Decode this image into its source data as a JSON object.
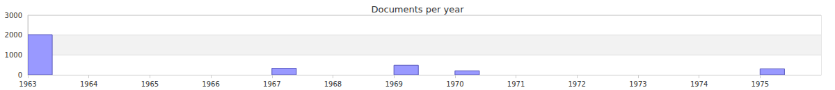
{
  "chart_data": {
    "type": "bar",
    "title": "Documents per year",
    "x": [
      1963,
      1967,
      1969,
      1970,
      1975
    ],
    "values": [
      2020,
      330,
      480,
      200,
      300
    ],
    "color": "#9999ff",
    "xlim": [
      1963,
      1976
    ],
    "xticks": [
      1963,
      1964,
      1965,
      1966,
      1967,
      1968,
      1969,
      1970,
      1971,
      1972,
      1973,
      1974,
      1975
    ],
    "ylim": [
      0,
      3000
    ],
    "yticks": [
      0,
      1000,
      2000,
      3000
    ],
    "grid": true
  }
}
